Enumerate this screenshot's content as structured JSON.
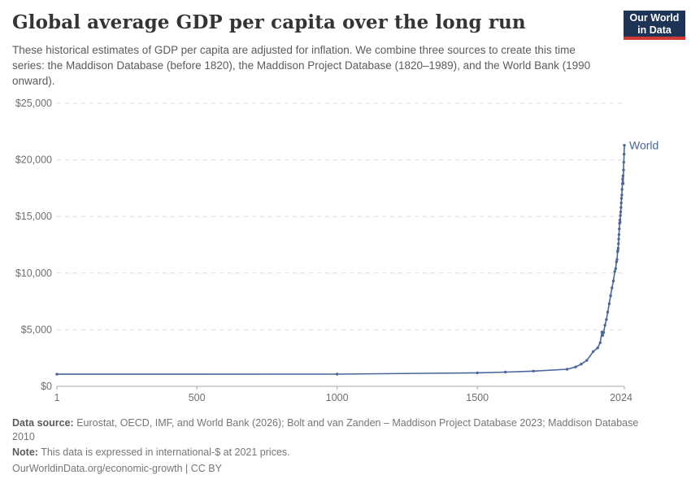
{
  "header": {
    "title": "Global average GDP per capita over the long run",
    "subtitle": "These historical estimates of GDP per capita are adjusted for inflation. We combine three sources to create this time series: the Maddison Database (before 1820), the Maddison Project Database (1820–1989), and the World Bank (1990 onward).",
    "logo": {
      "line1": "Our World",
      "line2": "in Data"
    }
  },
  "chart_data": {
    "type": "line",
    "title": "Global average GDP per capita over the long run",
    "xlabel": "",
    "ylabel": "",
    "xlim": [
      1,
      2024
    ],
    "ylim": [
      0,
      25000
    ],
    "grid": "horizontal-dashed",
    "legend_position": "end-of-line",
    "x_ticks": [
      {
        "value": 1,
        "label": "1"
      },
      {
        "value": 500,
        "label": "500"
      },
      {
        "value": 1000,
        "label": "1000"
      },
      {
        "value": 1500,
        "label": "1500"
      },
      {
        "value": 2024,
        "label": "2024"
      }
    ],
    "y_ticks": [
      {
        "value": 0,
        "label": "$0"
      },
      {
        "value": 5000,
        "label": "$5,000"
      },
      {
        "value": 10000,
        "label": "$10,000"
      },
      {
        "value": 15000,
        "label": "$15,000"
      },
      {
        "value": 20000,
        "label": "$20,000"
      },
      {
        "value": 25000,
        "label": "$25,000"
      }
    ],
    "series": [
      {
        "name": "World",
        "color": "#4a669b",
        "unit": "international-$ at 2021 prices",
        "points": [
          [
            1,
            1070
          ],
          [
            1000,
            1080
          ],
          [
            1500,
            1190
          ],
          [
            1600,
            1260
          ],
          [
            1700,
            1340
          ],
          [
            1820,
            1510
          ],
          [
            1850,
            1710
          ],
          [
            1870,
            1960
          ],
          [
            1890,
            2290
          ],
          [
            1913,
            3070
          ],
          [
            1929,
            3400
          ],
          [
            1938,
            3850
          ],
          [
            1944,
            4800
          ],
          [
            1947,
            4500
          ],
          [
            1950,
            4750
          ],
          [
            1955,
            5400
          ],
          [
            1960,
            5900
          ],
          [
            1965,
            6550
          ],
          [
            1970,
            7300
          ],
          [
            1975,
            8000
          ],
          [
            1980,
            8700
          ],
          [
            1985,
            9300
          ],
          [
            1990,
            10150
          ],
          [
            1993,
            10400
          ],
          [
            1996,
            11000
          ],
          [
            1998,
            11200
          ],
          [
            2000,
            11900
          ],
          [
            2001,
            12000
          ],
          [
            2002,
            12200
          ],
          [
            2003,
            12600
          ],
          [
            2004,
            13000
          ],
          [
            2005,
            13400
          ],
          [
            2006,
            13900
          ],
          [
            2007,
            14400
          ],
          [
            2008,
            14700
          ],
          [
            2009,
            14500
          ],
          [
            2010,
            15100
          ],
          [
            2011,
            15400
          ],
          [
            2012,
            15800
          ],
          [
            2013,
            16200
          ],
          [
            2014,
            16600
          ],
          [
            2015,
            16900
          ],
          [
            2016,
            17400
          ],
          [
            2017,
            17900
          ],
          [
            2018,
            18300
          ],
          [
            2019,
            18600
          ],
          [
            2020,
            17900
          ],
          [
            2021,
            19100
          ],
          [
            2022,
            19800
          ],
          [
            2023,
            20500
          ],
          [
            2024,
            21290
          ]
        ]
      }
    ]
  },
  "footer": {
    "data_source_label": "Data source:",
    "data_source_text": " Eurostat, OECD, IMF, and World Bank (2026); Bolt and van Zanden – Maddison Project Database 2023; Maddison Database 2010",
    "note_label": "Note:",
    "note_text": " This data is expressed in international-$ at 2021 prices.",
    "citation": "OurWorldinData.org/economic-growth | CC BY"
  },
  "colors": {
    "line": "#4a669b",
    "gridline": "#dcdcdc",
    "axis": "#a8a8a8",
    "tick_label": "#6e6e6e",
    "logo_bg": "#1d3456",
    "logo_accent": "#d13a34",
    "title_text": "#343434",
    "subtitle_text": "#5b5b5b",
    "footer_text": "#757575"
  }
}
